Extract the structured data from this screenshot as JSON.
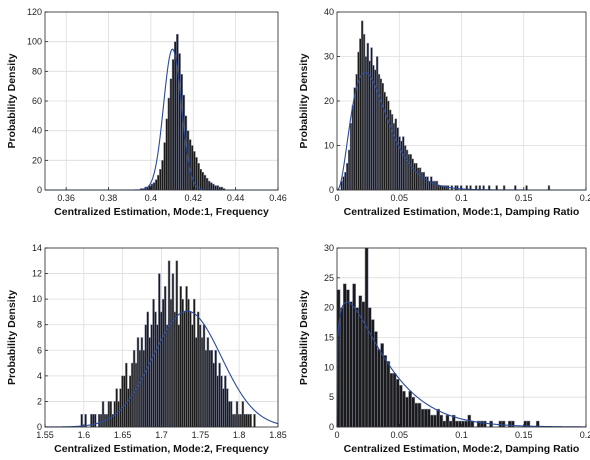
{
  "colors": {
    "bar_fill": "#1a1a1a",
    "bar_edge": "#8a8fa8",
    "pdf_curve": "#2b4a9a",
    "grid": "#dcdcdc"
  },
  "chart_data": [
    {
      "type": "bar",
      "subtype": "histogram-with-pdf",
      "xlabel": "Centralized Estimation, Mode:1, Frequency",
      "ylabel": "Probability Density",
      "xlim": [
        0.35,
        0.46
      ],
      "ylim": [
        0,
        120
      ],
      "xticks": [
        "0.36",
        "0.38",
        "0.4",
        "0.42",
        "0.44",
        "0.46"
      ],
      "yticks": [
        "0",
        "20",
        "40",
        "60",
        "80",
        "100",
        "120"
      ],
      "grid": true,
      "bin_width": 0.001,
      "bin_start": 0.395,
      "values": [
        1,
        1,
        2,
        2,
        3,
        4,
        5,
        7,
        10,
        14,
        20,
        32,
        48,
        62,
        75,
        88,
        100,
        105,
        92,
        78,
        64,
        50,
        40,
        34,
        30,
        26,
        22,
        18,
        14,
        12,
        10,
        8,
        6,
        5,
        4,
        3,
        3,
        2,
        2,
        1
      ],
      "pdf": {
        "kind": "normal",
        "mean": 0.4102,
        "sd": 0.0042
      }
    },
    {
      "type": "bar",
      "subtype": "histogram-with-pdf",
      "xlabel": "Centralized Estimation, Mode:1, Damping Ratio",
      "ylabel": "Probability Density",
      "xlim": [
        0,
        0.2
      ],
      "ylim": [
        0,
        40
      ],
      "xticks": [
        "0",
        "0.05",
        "0.1",
        "0.15",
        "0.2"
      ],
      "yticks": [
        "0",
        "10",
        "20",
        "30",
        "40"
      ],
      "grid": true,
      "bin_width": 0.0015,
      "bin_start": 0.003,
      "values": [
        2,
        3,
        4,
        6,
        9,
        15,
        19,
        23,
        26,
        31,
        34,
        38,
        35,
        30,
        33,
        29,
        32,
        28,
        27,
        30,
        26,
        25,
        24,
        22,
        21,
        20,
        18,
        17,
        15,
        16,
        14,
        12,
        11,
        12,
        10,
        9,
        8,
        8,
        7,
        6,
        6,
        5,
        5,
        4,
        4,
        3,
        3,
        2,
        3,
        2,
        2,
        2,
        1,
        1,
        1,
        1,
        1,
        1,
        0,
        1,
        0,
        1,
        1,
        0,
        1,
        0,
        0,
        1,
        0,
        1,
        0,
        0,
        1,
        0,
        1,
        0,
        1,
        0,
        0,
        1,
        0,
        0,
        0,
        1,
        0,
        0,
        0,
        1,
        0,
        0,
        0,
        0,
        0,
        1,
        0,
        0,
        0,
        0,
        0,
        1,
        0,
        0,
        0,
        0,
        0,
        0,
        0,
        0,
        0,
        0,
        0,
        1
      ],
      "pdf": {
        "kind": "gamma",
        "shape": 3.4,
        "scale": 0.0094
      }
    },
    {
      "type": "bar",
      "subtype": "histogram-with-pdf",
      "xlabel": "Centralized Estimation, Mode:2, Frequency",
      "ylabel": "Probability Density",
      "xlim": [
        1.55,
        1.85
      ],
      "ylim": [
        0,
        14
      ],
      "xticks": [
        "1.55",
        "1.6",
        "1.65",
        "1.7",
        "1.75",
        "1.8",
        "1.85"
      ],
      "yticks": [
        "0",
        "2",
        "4",
        "6",
        "8",
        "10",
        "12",
        "14"
      ],
      "grid": true,
      "bin_width": 0.0025,
      "bin_start": 1.596,
      "values": [
        1,
        0,
        1,
        0,
        0,
        1,
        1,
        1,
        0,
        1,
        1,
        2,
        1,
        1,
        2,
        2,
        1,
        2,
        3,
        2,
        3,
        4,
        4,
        5,
        3,
        4,
        5,
        6,
        5,
        7,
        6,
        7,
        6,
        8,
        9,
        7,
        8,
        10,
        9,
        8,
        12,
        9,
        10,
        11,
        8,
        13,
        10,
        12,
        9,
        13,
        8,
        11,
        10,
        9,
        11,
        10,
        9,
        8,
        10,
        7,
        9,
        8,
        7,
        8,
        6,
        7,
        6,
        6,
        5,
        6,
        4,
        5,
        4,
        3,
        4,
        3,
        2,
        2,
        1,
        1,
        2,
        1,
        1,
        2,
        1,
        1,
        1,
        1,
        0,
        1
      ],
      "pdf": {
        "kind": "normal",
        "mean": 1.733,
        "sd": 0.044
      }
    },
    {
      "type": "bar",
      "subtype": "histogram-with-pdf",
      "xlabel": "Centralized Estimation, Mode:2, Damping Ratio",
      "ylabel": "Probability Density",
      "xlim": [
        0,
        0.2
      ],
      "ylim": [
        0,
        30
      ],
      "xticks": [
        "0",
        "0.05",
        "0.1",
        "0.15",
        "0.2"
      ],
      "yticks": [
        "0",
        "5",
        "10",
        "15",
        "20",
        "25",
        "30"
      ],
      "grid": true,
      "bin_width": 0.0025,
      "bin_start": 0.0,
      "values": [
        23,
        20,
        24,
        23,
        21,
        24,
        20,
        22,
        21,
        30,
        20,
        18,
        16,
        13,
        14,
        12,
        11,
        9,
        9,
        8,
        7,
        6,
        5,
        6,
        5,
        4,
        4,
        3,
        3,
        3,
        2,
        2,
        3,
        2,
        1,
        2,
        1,
        2,
        1,
        1,
        1,
        1,
        2,
        1,
        0,
        1,
        1,
        1,
        0,
        1,
        0,
        0,
        1,
        1,
        0,
        1,
        1,
        0,
        0,
        0,
        1,
        1,
        0,
        0,
        1,
        0,
        0,
        0
      ],
      "pdf": {
        "kind": "weibull",
        "shape": 1.2,
        "scale": 0.036
      }
    }
  ]
}
